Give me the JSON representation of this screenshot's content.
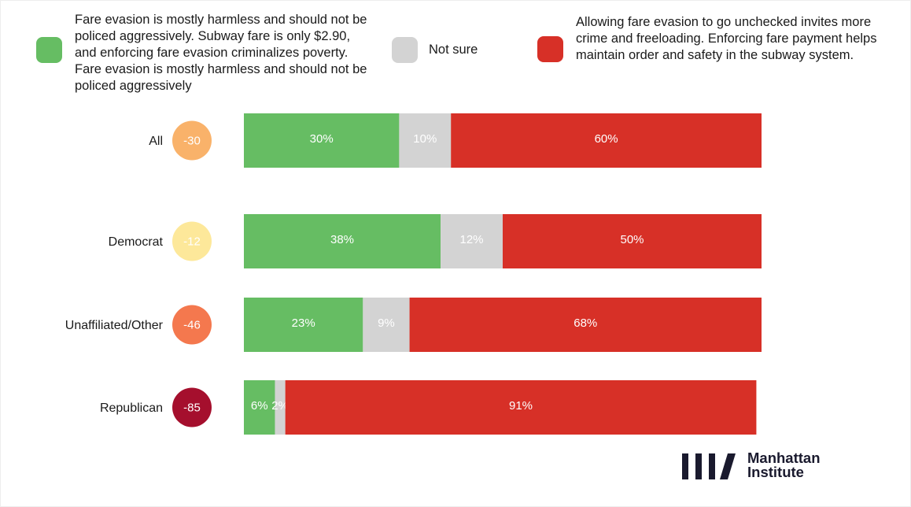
{
  "legend": [
    {
      "key": "harmless",
      "color": "#66bd63",
      "text": "Fare evasion is mostly harmless and should not be policed aggressively. Subway fare is only $2.90, and enforcing fare evasion criminalizes poverty. Fare evasion is mostly harmless and should not be policed aggressively"
    },
    {
      "key": "not_sure",
      "color": "#d3d3d3",
      "text": "Not sure"
    },
    {
      "key": "enforce",
      "color": "#d73027",
      "text": "Allowing fare evasion to go unchecked invites more crime and freeloading. Enforcing fare payment helps maintain order and safety in the subway system."
    }
  ],
  "chart_data": {
    "type": "bar",
    "orientation": "horizontal",
    "stacked": true,
    "normalized_to": 100,
    "categories": [
      "All",
      "Democrat",
      "Unaffiliated/Other",
      "Republican"
    ],
    "net_scores": [
      -30,
      -12,
      -46,
      -85
    ],
    "net_colors": [
      "#f9b26a",
      "#fde89a",
      "#f4784e",
      "#a50f2d"
    ],
    "net_label_colors": [
      "#ffffff",
      "#ffffff",
      "#ffffff",
      "#ffffff"
    ],
    "series": [
      {
        "name": "Fare evasion is mostly harmless and should not be policed aggressively",
        "color": "#66bd63",
        "values": [
          30,
          38,
          23,
          6
        ],
        "labels": [
          "30%",
          "38%",
          "23%",
          "6%"
        ]
      },
      {
        "name": "Not sure",
        "color": "#d3d3d3",
        "values": [
          10,
          12,
          9,
          2
        ],
        "labels": [
          "10%",
          "12%",
          "9%",
          "2%"
        ]
      },
      {
        "name": "Allowing fare evasion to go unchecked invites more crime and freeloading",
        "color": "#d73027",
        "values": [
          60,
          50,
          68,
          91
        ],
        "labels": [
          "60%",
          "50%",
          "68%",
          "91%"
        ]
      }
    ]
  },
  "brand": {
    "line1": "Manhattan",
    "line2": "Institute",
    "color": "#1a1a2e"
  }
}
